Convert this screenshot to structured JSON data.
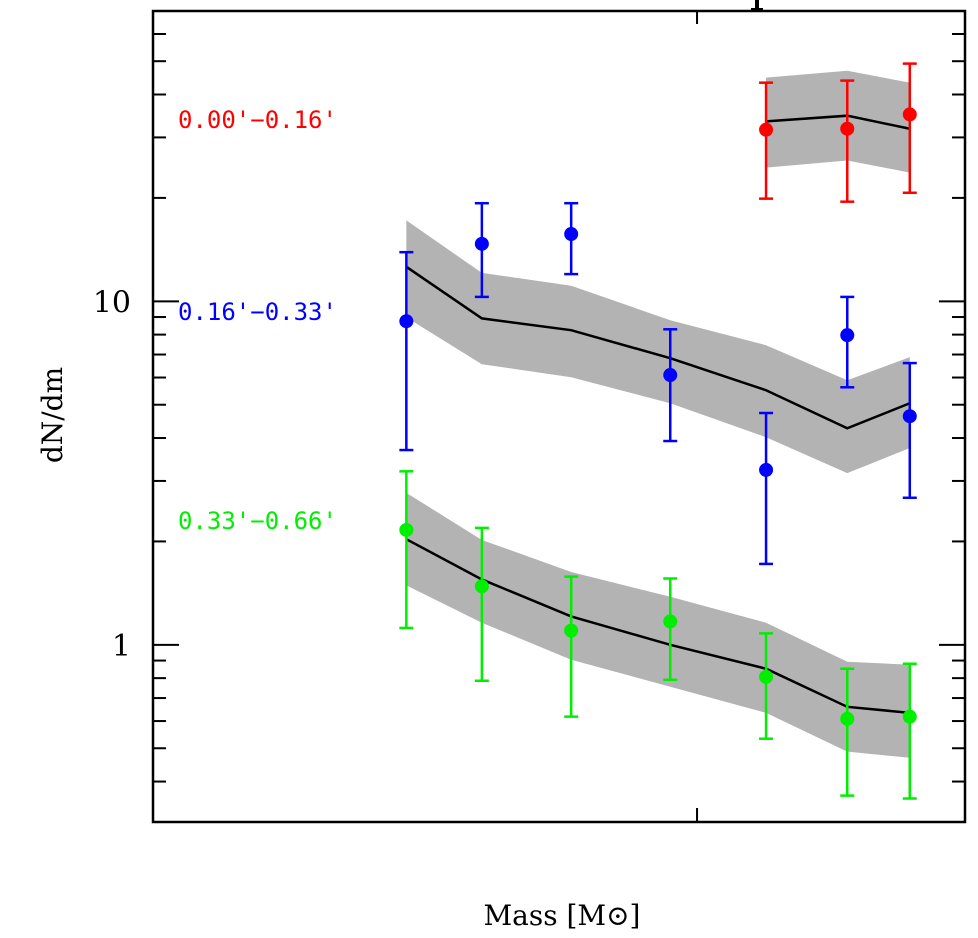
{
  "chart_data": {
    "type": "scatter",
    "title": "",
    "xlabel": "Mass [M⊙]",
    "ylabel": "dN/dm",
    "xscale": "unlabeled (normalized)",
    "yscale": "log",
    "xlim": [
      0,
      1
    ],
    "ylim": [
      0.305,
      70
    ],
    "grid": false,
    "x_major_ticks": [
      0.67
    ],
    "y_major_ticks": [
      1,
      10
    ],
    "y_tick_labels": [
      "1",
      "10"
    ],
    "y_minor_ticks": [
      0.4,
      0.5,
      0.6,
      0.7,
      0.8,
      0.9,
      2,
      3,
      4,
      5,
      6,
      7,
      8,
      9,
      20,
      30,
      40,
      50,
      60
    ],
    "legend": "inline labels on left",
    "series": [
      {
        "name": "0.00'–0.16'",
        "label": "0.00'−0.16'",
        "color": "#ff0000",
        "x": [
          0.755,
          0.855,
          0.932
        ],
        "y": [
          31.6,
          31.8,
          35.0
        ],
        "y_err_low": [
          19.9,
          19.5,
          20.7
        ],
        "y_err_high": [
          43.3,
          43.9,
          49.2
        ],
        "model": [
          33.4,
          34.7,
          31.8
        ],
        "model_band_low": [
          24.5,
          25.7,
          23.7
        ],
        "model_band_high": [
          44.8,
          46.9,
          43.3
        ]
      },
      {
        "name": "0.16'–0.33'",
        "label": "0.16'−0.33'",
        "color": "#0000ff",
        "x": [
          0.312,
          0.405,
          0.515,
          0.637,
          0.755,
          0.855,
          0.932
        ],
        "y": [
          8.75,
          14.7,
          15.7,
          6.1,
          3.23,
          7.97,
          4.63
        ],
        "y_err_low": [
          3.69,
          10.3,
          12.0,
          3.92,
          1.72,
          5.62,
          2.68
        ],
        "y_err_high": [
          13.9,
          19.3,
          19.3,
          8.29,
          4.73,
          10.3,
          6.61
        ],
        "model": [
          12.6,
          8.92,
          8.24,
          6.83,
          5.51,
          4.27,
          5.05
        ],
        "model_band_low": [
          8.98,
          6.56,
          6.01,
          5.05,
          4.02,
          3.16,
          3.74
        ],
        "model_band_high": [
          17.2,
          12.1,
          11.1,
          8.81,
          7.45,
          5.89,
          6.88
        ]
      },
      {
        "name": "0.33'–0.66'",
        "label": "0.33'−0.66'",
        "color": "#00ee00",
        "x": [
          0.312,
          0.405,
          0.515,
          0.637,
          0.755,
          0.855,
          0.932
        ],
        "y": [
          2.16,
          1.48,
          1.1,
          1.17,
          0.807,
          0.609,
          0.618
        ],
        "y_err_low": [
          1.12,
          0.786,
          0.618,
          0.791,
          0.533,
          0.364,
          0.357
        ],
        "y_err_high": [
          3.2,
          2.19,
          1.58,
          1.56,
          1.08,
          0.852,
          0.881
        ],
        "model": [
          2.03,
          1.55,
          1.21,
          1.0,
          0.852,
          0.66,
          0.634
        ],
        "model_band_low": [
          1.49,
          1.16,
          0.905,
          0.755,
          0.634,
          0.489,
          0.469
        ],
        "model_band_high": [
          2.77,
          2.02,
          1.63,
          1.38,
          1.16,
          0.893,
          0.875
        ]
      }
    ],
    "model_line_color": "#000000",
    "model_band_color": "#b3b3b3"
  }
}
